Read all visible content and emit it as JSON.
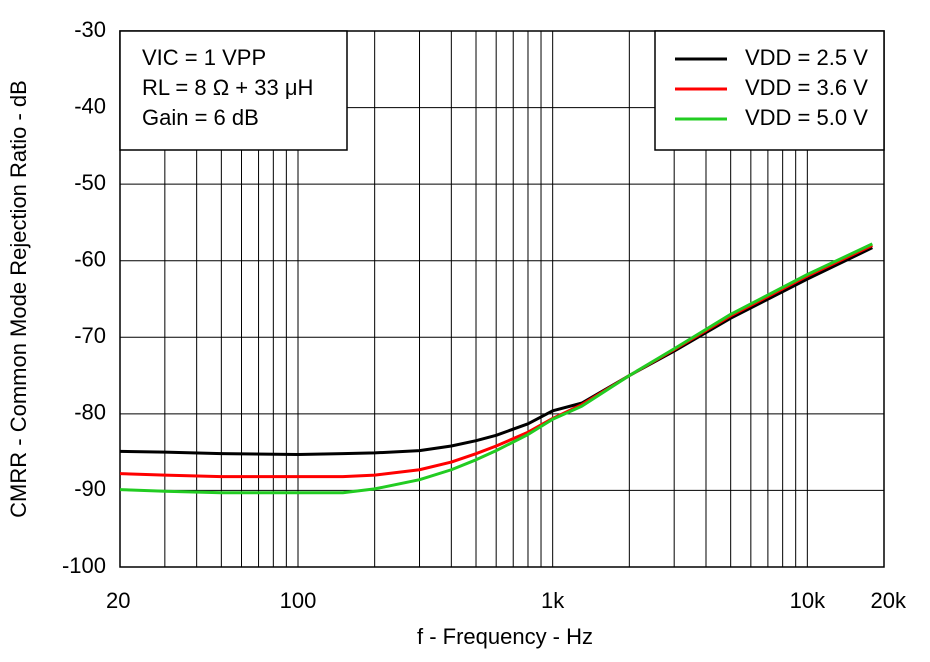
{
  "chart_data": {
    "type": "line",
    "xlabel": "f - Frequency - Hz",
    "ylabel": "CMRR - Common Mode Rejection Ratio - dB",
    "annotations": [
      "VIC = 1 VPP",
      "RL = 8 Ω + 33 μH",
      "Gain = 6 dB"
    ],
    "x": [
      20,
      30,
      50,
      100,
      150,
      200,
      300,
      400,
      500,
      600,
      800,
      1000,
      1300,
      2000,
      3000,
      5000,
      10000,
      18000
    ],
    "series": [
      {
        "name": "VDD = 2.5 V",
        "color": "#000000",
        "values": [
          -84.9,
          -85.0,
          -85.2,
          -85.3,
          -85.2,
          -85.1,
          -84.8,
          -84.2,
          -83.5,
          -82.8,
          -81.3,
          -79.6,
          -78.6,
          -75.0,
          -71.8,
          -67.5,
          -62.4,
          -58.3
        ]
      },
      {
        "name": "VDD = 3.6 V",
        "color": "#ff0000",
        "values": [
          -87.8,
          -88.0,
          -88.2,
          -88.2,
          -88.2,
          -88.0,
          -87.3,
          -86.3,
          -85.2,
          -84.2,
          -82.4,
          -80.6,
          -78.8,
          -75.0,
          -71.6,
          -67.2,
          -62.0,
          -58.0
        ]
      },
      {
        "name": "VDD = 5.0 V",
        "color": "#22cc22",
        "values": [
          -89.9,
          -90.1,
          -90.3,
          -90.3,
          -90.3,
          -89.8,
          -88.6,
          -87.3,
          -86.0,
          -84.8,
          -82.7,
          -80.7,
          -79.0,
          -75.0,
          -71.5,
          -67.0,
          -61.8,
          -57.8
        ]
      }
    ],
    "xscale": "log",
    "xlim": [
      20,
      20000
    ],
    "xticks": [
      20,
      100,
      {
        "value": 1000,
        "label": "1k"
      },
      {
        "value": 10000,
        "label": "10k"
      },
      {
        "value": 20000,
        "label": "20k"
      }
    ],
    "xgrid": [
      30,
      40,
      50,
      60,
      70,
      80,
      90,
      200,
      300,
      400,
      500,
      600,
      700,
      800,
      900,
      2000,
      3000,
      4000,
      5000,
      6000,
      7000,
      8000,
      9000
    ],
    "ylim": [
      -100,
      -30
    ],
    "yticks": [
      -100,
      -90,
      -80,
      -70,
      -60,
      -50,
      -40,
      -30
    ],
    "grid": true,
    "legend": "upper right"
  }
}
